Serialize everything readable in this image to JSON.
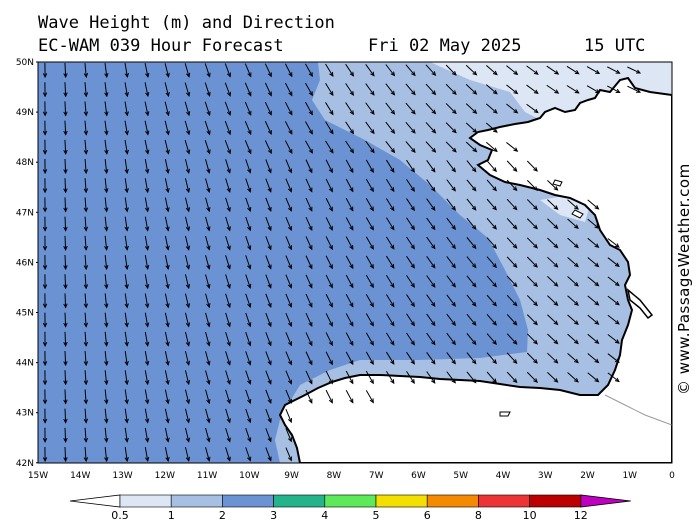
{
  "header": {
    "line1": "Wave Height (m) and Direction",
    "model": "EC-WAM 039 Hour Forecast",
    "date": "Fri 02 May 2025",
    "time": "15 UTC"
  },
  "credit": "© www.PassageWeather.com",
  "lat_labels": [
    "50N",
    "49N",
    "48N",
    "47N",
    "46N",
    "45N",
    "44N",
    "43N",
    "42N"
  ],
  "lon_labels": [
    "15W",
    "14W",
    "13W",
    "12W",
    "11W",
    "10W",
    "9W",
    "8W",
    "7W",
    "6W",
    "5W",
    "4W",
    "3W",
    "2W",
    "1W",
    "0"
  ],
  "scale": {
    "labels": [
      "0.5",
      "1",
      "2",
      "3",
      "4",
      "5",
      "6",
      "8",
      "10",
      "12"
    ],
    "colors": [
      "#dde6f5",
      "#a6bfe2",
      "#6b93d3",
      "#24b48c",
      "#5cea5a",
      "#f4e000",
      "#f58a00",
      "#ec3434",
      "#bb0000",
      "#c000c0"
    ]
  },
  "colors": {
    "sea_main": "#6b93d3",
    "sea_mid": "#a6bfe2",
    "sea_light": "#dde6f5",
    "land": "#ffffff"
  }
}
